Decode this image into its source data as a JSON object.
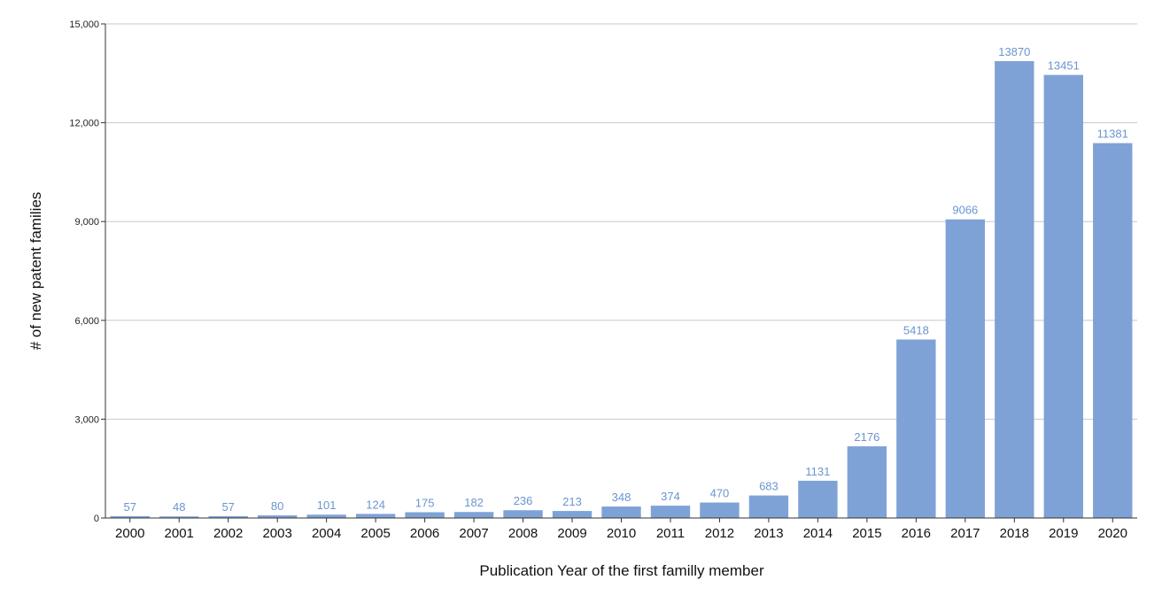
{
  "chart_data": {
    "type": "bar",
    "title": "",
    "xlabel": "Publication Year of the first familly member",
    "ylabel": "# of new patent families",
    "categories": [
      "2000",
      "2001",
      "2002",
      "2003",
      "2004",
      "2005",
      "2006",
      "2007",
      "2008",
      "2009",
      "2010",
      "2011",
      "2012",
      "2013",
      "2014",
      "2015",
      "2016",
      "2017",
      "2018",
      "2019",
      "2020"
    ],
    "values": [
      57,
      48,
      57,
      80,
      101,
      124,
      175,
      182,
      236,
      213,
      348,
      374,
      470,
      683,
      1131,
      2176,
      5418,
      9066,
      13870,
      13451,
      11381
    ],
    "ylim": [
      0,
      15000
    ],
    "yticks": [
      0,
      3000,
      6000,
      9000,
      12000,
      15000
    ],
    "ytick_labels": [
      "0",
      "3,000",
      "6,000",
      "9,000",
      "12,000",
      "15,000"
    ],
    "grid": true,
    "legend": "none",
    "bar_color": "#7fa2d6",
    "label_color": "#6a95cf"
  }
}
